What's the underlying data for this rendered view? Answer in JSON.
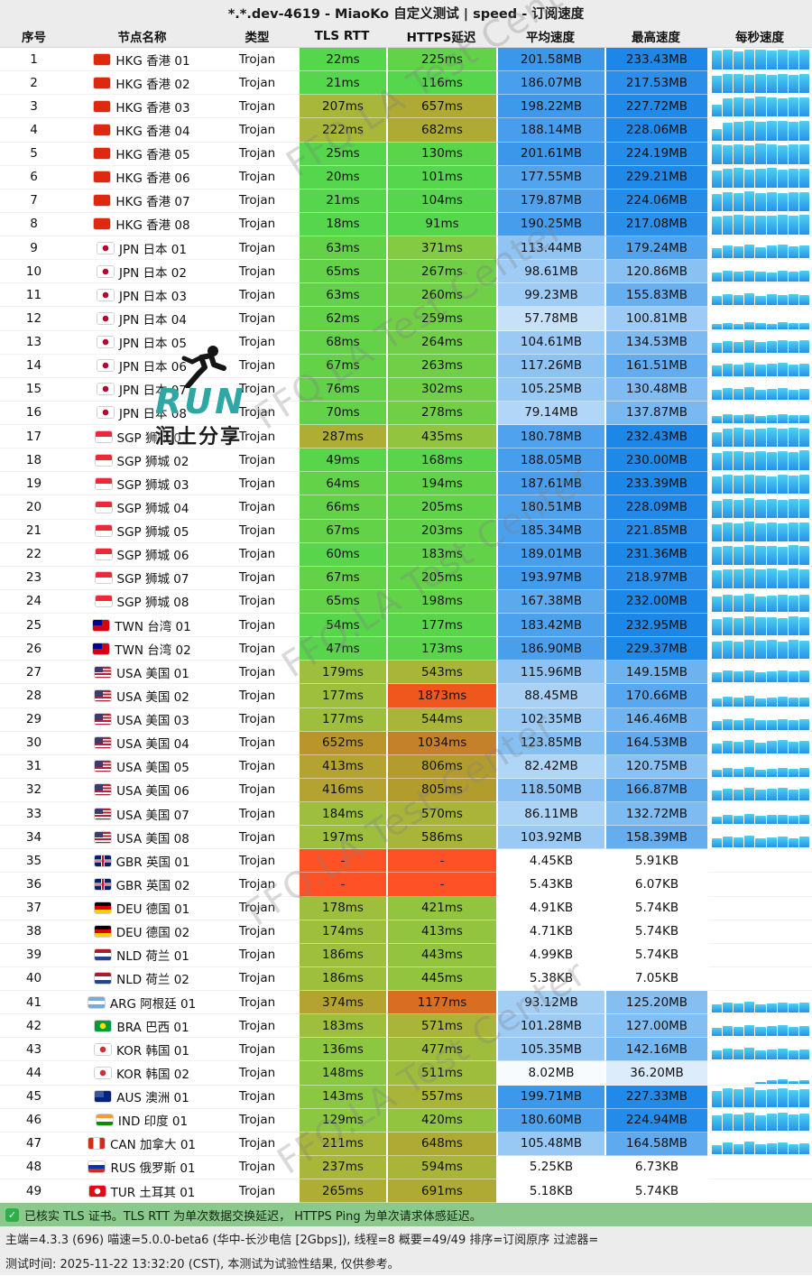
{
  "title": "*.*.dev-4619 - MiaoKo 自定义测试 | speed - 订阅速度",
  "columns": [
    "序号",
    "节点名称",
    "类型",
    "TLS RTT",
    "HTTPS延迟",
    "平均速度",
    "最高速度",
    "每秒速度"
  ],
  "rows": [
    {
      "no": 1,
      "flag": "HK",
      "name": "HKG 香港 01",
      "type": "Trojan",
      "tls": 22,
      "https": 225,
      "avg": "201.58MB",
      "max": "233.43MB",
      "bars": [
        92,
        96,
        88,
        94,
        97,
        90,
        95,
        93,
        96
      ]
    },
    {
      "no": 2,
      "flag": "HK",
      "name": "HKG 香港 02",
      "type": "Trojan",
      "tls": 21,
      "https": 116,
      "avg": "186.07MB",
      "max": "217.53MB",
      "bars": [
        85,
        90,
        94,
        88,
        92,
        86,
        91,
        89,
        93
      ]
    },
    {
      "no": 3,
      "flag": "HK",
      "name": "HKG 香港 03",
      "type": "Trojan",
      "tls": 207,
      "https": 657,
      "avg": "198.22MB",
      "max": "227.72MB",
      "bars": [
        58,
        88,
        93,
        90,
        95,
        92,
        89,
        94,
        91
      ]
    },
    {
      "no": 4,
      "flag": "HK",
      "name": "HKG 香港 04",
      "type": "Trojan",
      "tls": 222,
      "https": 682,
      "avg": "188.14MB",
      "max": "228.06MB",
      "bars": [
        52,
        85,
        90,
        94,
        88,
        92,
        95,
        90,
        93
      ]
    },
    {
      "no": 5,
      "flag": "HK",
      "name": "HKG 香港 05",
      "type": "Trojan",
      "tls": 25,
      "https": 130,
      "avg": "201.61MB",
      "max": "224.19MB",
      "bars": [
        93,
        89,
        95,
        91,
        96,
        94,
        90,
        92,
        95
      ]
    },
    {
      "no": 6,
      "flag": "HK",
      "name": "HKG 香港 06",
      "type": "Trojan",
      "tls": 20,
      "https": 101,
      "avg": "177.55MB",
      "max": "229.21MB",
      "bars": [
        80,
        88,
        92,
        85,
        90,
        94,
        87,
        91,
        89
      ]
    },
    {
      "no": 7,
      "flag": "HK",
      "name": "HKG 香港 07",
      "type": "Trojan",
      "tls": 21,
      "https": 104,
      "avg": "179.87MB",
      "max": "224.06MB",
      "bars": [
        82,
        90,
        86,
        93,
        88,
        91,
        85,
        92,
        90
      ]
    },
    {
      "no": 8,
      "flag": "HK",
      "name": "HKG 香港 08",
      "type": "Trojan",
      "tls": 18,
      "https": 91,
      "avg": "190.25MB",
      "max": "217.08MB",
      "bars": [
        88,
        92,
        95,
        90,
        93,
        89,
        94,
        91,
        95
      ]
    },
    {
      "no": 9,
      "flag": "JP",
      "name": "JPN 日本 01",
      "type": "Trojan",
      "tls": 63,
      "https": 371,
      "avg": "113.44MB",
      "max": "179.24MB",
      "bars": [
        50,
        62,
        58,
        66,
        54,
        60,
        64,
        57,
        61
      ]
    },
    {
      "no": 10,
      "flag": "JP",
      "name": "JPN 日本 02",
      "type": "Trojan",
      "tls": 65,
      "https": 267,
      "avg": "98.61MB",
      "max": "120.86MB",
      "bars": [
        45,
        52,
        48,
        55,
        50,
        46,
        53,
        49,
        51
      ]
    },
    {
      "no": 11,
      "flag": "JP",
      "name": "JPN 日本 03",
      "type": "Trojan",
      "tls": 63,
      "https": 260,
      "avg": "99.23MB",
      "max": "155.83MB",
      "bars": [
        44,
        53,
        49,
        56,
        47,
        52,
        50,
        54,
        48
      ]
    },
    {
      "no": 12,
      "flag": "JP",
      "name": "JPN 日本 04",
      "type": "Trojan",
      "tls": 62,
      "https": 259,
      "avg": "57.78MB",
      "max": "100.81MB",
      "bars": [
        22,
        30,
        26,
        33,
        28,
        24,
        31,
        27,
        29
      ]
    },
    {
      "no": 13,
      "flag": "JP",
      "name": "JPN 日本 05",
      "type": "Trojan",
      "tls": 68,
      "https": 264,
      "avg": "104.61MB",
      "max": "134.53MB",
      "bars": [
        48,
        56,
        52,
        60,
        50,
        55,
        58,
        53,
        57
      ]
    },
    {
      "no": 14,
      "flag": "JP",
      "name": "JPN 日本 06",
      "type": "Trojan",
      "tls": 67,
      "https": 263,
      "avg": "117.26MB",
      "max": "161.51MB",
      "bars": [
        52,
        60,
        56,
        64,
        54,
        58,
        62,
        55,
        60
      ]
    },
    {
      "no": 15,
      "flag": "JP",
      "name": "JPN 日本 07",
      "type": "Trojan",
      "tls": 76,
      "https": 302,
      "avg": "105.25MB",
      "max": "130.48MB",
      "bars": [
        46,
        54,
        50,
        58,
        48,
        52,
        56,
        49,
        53
      ]
    },
    {
      "no": 16,
      "flag": "JP",
      "name": "JPN 日本 08",
      "type": "Trojan",
      "tls": 70,
      "https": 278,
      "avg": "79.14MB",
      "max": "137.87MB",
      "bars": [
        34,
        42,
        38,
        45,
        36,
        40,
        44,
        37,
        41
      ]
    },
    {
      "no": 17,
      "flag": "SG",
      "name": "SGP 狮城 01",
      "type": "Trojan",
      "tls": 287,
      "https": 435,
      "avg": "180.78MB",
      "max": "232.43MB",
      "bars": [
        68,
        85,
        90,
        82,
        88,
        92,
        86,
        91,
        89
      ]
    },
    {
      "no": 18,
      "flag": "SG",
      "name": "SGP 狮城 02",
      "type": "Trojan",
      "tls": 49,
      "https": 168,
      "avg": "188.05MB",
      "max": "230.00MB",
      "bars": [
        84,
        90,
        94,
        88,
        92,
        86,
        93,
        89,
        95
      ]
    },
    {
      "no": 19,
      "flag": "SG",
      "name": "SGP 狮城 03",
      "type": "Trojan",
      "tls": 64,
      "https": 194,
      "avg": "187.61MB",
      "max": "233.39MB",
      "bars": [
        85,
        91,
        88,
        94,
        90,
        86,
        92,
        89,
        93
      ]
    },
    {
      "no": 20,
      "flag": "SG",
      "name": "SGP 狮城 04",
      "type": "Trojan",
      "tls": 66,
      "https": 205,
      "avg": "180.51MB",
      "max": "228.09MB",
      "bars": [
        80,
        88,
        84,
        91,
        86,
        89,
        83,
        90,
        87
      ]
    },
    {
      "no": 21,
      "flag": "SG",
      "name": "SGP 狮城 05",
      "type": "Trojan",
      "tls": 67,
      "https": 203,
      "avg": "185.34MB",
      "max": "221.85MB",
      "bars": [
        82,
        89,
        85,
        92,
        87,
        90,
        84,
        91,
        88
      ]
    },
    {
      "no": 22,
      "flag": "SG",
      "name": "SGP 狮城 06",
      "type": "Trojan",
      "tls": 60,
      "https": 183,
      "avg": "189.01MB",
      "max": "231.36MB",
      "bars": [
        84,
        90,
        87,
        93,
        88,
        91,
        85,
        92,
        90
      ]
    },
    {
      "no": 23,
      "flag": "SG",
      "name": "SGP 狮城 07",
      "type": "Trojan",
      "tls": 67,
      "https": 205,
      "avg": "193.97MB",
      "max": "218.97MB",
      "bars": [
        86,
        92,
        89,
        95,
        90,
        93,
        87,
        94,
        91
      ]
    },
    {
      "no": 24,
      "flag": "SG",
      "name": "SGP 狮城 08",
      "type": "Trojan",
      "tls": 65,
      "https": 198,
      "avg": "167.38MB",
      "max": "232.00MB",
      "bars": [
        72,
        82,
        78,
        86,
        74,
        80,
        84,
        76,
        83
      ]
    },
    {
      "no": 25,
      "flag": "TW",
      "name": "TWN 台湾 01",
      "type": "Trojan",
      "tls": 54,
      "https": 177,
      "avg": "183.42MB",
      "max": "232.95MB",
      "bars": [
        80,
        88,
        84,
        90,
        86,
        89,
        83,
        91,
        87
      ]
    },
    {
      "no": 26,
      "flag": "TW",
      "name": "TWN 台湾 02",
      "type": "Trojan",
      "tls": 47,
      "https": 173,
      "avg": "186.90MB",
      "max": "229.37MB",
      "bars": [
        82,
        89,
        85,
        92,
        87,
        90,
        84,
        91,
        88
      ]
    },
    {
      "no": 27,
      "flag": "US",
      "name": "USA 美国 01",
      "type": "Trojan",
      "tls": 179,
      "https": 543,
      "avg": "115.96MB",
      "max": "149.15MB",
      "bars": [
        48,
        56,
        52,
        60,
        50,
        55,
        58,
        53,
        57
      ]
    },
    {
      "no": 28,
      "flag": "US",
      "name": "USA 美国 02",
      "type": "Trojan",
      "tls": 177,
      "https": 1873,
      "avg": "88.45MB",
      "max": "170.66MB",
      "bars": [
        36,
        44,
        40,
        48,
        38,
        42,
        46,
        39,
        43
      ]
    },
    {
      "no": 29,
      "flag": "US",
      "name": "USA 美国 03",
      "type": "Trojan",
      "tls": 177,
      "https": 544,
      "avg": "102.35MB",
      "max": "146.46MB",
      "bars": [
        42,
        50,
        46,
        54,
        44,
        48,
        52,
        45,
        49
      ]
    },
    {
      "no": 30,
      "flag": "US",
      "name": "USA 美国 04",
      "type": "Trojan",
      "tls": 652,
      "https": 1034,
      "avg": "123.85MB",
      "max": "164.53MB",
      "bars": [
        48,
        60,
        55,
        64,
        52,
        58,
        62,
        54,
        59
      ]
    },
    {
      "no": 31,
      "flag": "US",
      "name": "USA 美国 05",
      "type": "Trojan",
      "tls": 413,
      "https": 806,
      "avg": "82.42MB",
      "max": "120.75MB",
      "bars": [
        34,
        42,
        38,
        45,
        36,
        40,
        44,
        37,
        41
      ]
    },
    {
      "no": 32,
      "flag": "US",
      "name": "USA 美国 06",
      "type": "Trojan",
      "tls": 416,
      "https": 805,
      "avg": "118.50MB",
      "max": "166.87MB",
      "bars": [
        48,
        58,
        53,
        62,
        50,
        56,
        60,
        52,
        57
      ]
    },
    {
      "no": 33,
      "flag": "US",
      "name": "USA 美国 07",
      "type": "Trojan",
      "tls": 184,
      "https": 570,
      "avg": "86.11MB",
      "max": "132.72MB",
      "bars": [
        36,
        44,
        40,
        47,
        38,
        42,
        45,
        39,
        43
      ]
    },
    {
      "no": 34,
      "flag": "US",
      "name": "USA 美国 08",
      "type": "Trojan",
      "tls": 197,
      "https": 586,
      "avg": "103.92MB",
      "max": "158.39MB",
      "bars": [
        43,
        52,
        47,
        56,
        45,
        50,
        54,
        46,
        51
      ]
    },
    {
      "no": 35,
      "flag": "GB",
      "name": "GBR 英国 01",
      "type": "Trojan",
      "tls": "-",
      "https": "-",
      "avg": "4.45KB",
      "max": "5.91KB",
      "bars": [
        0,
        0,
        0,
        0,
        0,
        0,
        0,
        0,
        0
      ]
    },
    {
      "no": 36,
      "flag": "GB",
      "name": "GBR 英国 02",
      "type": "Trojan",
      "tls": "-",
      "https": "-",
      "avg": "5.43KB",
      "max": "6.07KB",
      "bars": [
        0,
        0,
        0,
        0,
        0,
        0,
        0,
        0,
        0
      ]
    },
    {
      "no": 37,
      "flag": "DE",
      "name": "DEU 德国 01",
      "type": "Trojan",
      "tls": 178,
      "https": 421,
      "avg": "4.91KB",
      "max": "5.74KB",
      "bars": [
        0,
        0,
        0,
        0,
        0,
        0,
        0,
        0,
        0
      ]
    },
    {
      "no": 38,
      "flag": "DE",
      "name": "DEU 德国 02",
      "type": "Trojan",
      "tls": 174,
      "https": 413,
      "avg": "4.71KB",
      "max": "5.74KB",
      "bars": [
        0,
        0,
        0,
        0,
        0,
        0,
        0,
        0,
        0
      ]
    },
    {
      "no": 39,
      "flag": "NL",
      "name": "NLD 荷兰 01",
      "type": "Trojan",
      "tls": 186,
      "https": 443,
      "avg": "4.99KB",
      "max": "5.74KB",
      "bars": [
        0,
        0,
        0,
        0,
        0,
        0,
        0,
        0,
        0
      ]
    },
    {
      "no": 40,
      "flag": "NL",
      "name": "NLD 荷兰 02",
      "type": "Trojan",
      "tls": 186,
      "https": 445,
      "avg": "5.38KB",
      "max": "7.05KB",
      "bars": [
        0,
        0,
        0,
        0,
        0,
        0,
        0,
        0,
        0
      ]
    },
    {
      "no": 41,
      "flag": "AR",
      "name": "ARG 阿根廷 01",
      "type": "Trojan",
      "tls": 374,
      "https": 1177,
      "avg": "93.12MB",
      "max": "125.20MB",
      "bars": [
        38,
        48,
        43,
        52,
        40,
        46,
        50,
        42,
        47
      ]
    },
    {
      "no": 42,
      "flag": "BR",
      "name": "BRA 巴西 01",
      "type": "Trojan",
      "tls": 183,
      "https": 571,
      "avg": "101.28MB",
      "max": "127.00MB",
      "bars": [
        42,
        50,
        46,
        54,
        44,
        48,
        52,
        45,
        49
      ]
    },
    {
      "no": 43,
      "flag": "KR",
      "name": "KOR 韩国 01",
      "type": "Trojan",
      "tls": 136,
      "https": 477,
      "avg": "105.35MB",
      "max": "142.16MB",
      "bars": [
        44,
        52,
        48,
        56,
        46,
        50,
        54,
        47,
        51
      ]
    },
    {
      "no": 44,
      "flag": "KR",
      "name": "KOR 韩国 02",
      "type": "Trojan",
      "tls": 148,
      "https": 511,
      "avg": "8.02MB",
      "max": "36.20MB",
      "bars": [
        0,
        0,
        0,
        0,
        6,
        14,
        20,
        12,
        16
      ]
    },
    {
      "no": 45,
      "flag": "AU",
      "name": "AUS 澳洲 01",
      "type": "Trojan",
      "tls": 143,
      "https": 557,
      "avg": "199.71MB",
      "max": "227.33MB",
      "bars": [
        78,
        88,
        83,
        92,
        80,
        86,
        90,
        82,
        87
      ]
    },
    {
      "no": 46,
      "flag": "IN",
      "name": "IND 印度 01",
      "type": "Trojan",
      "tls": 129,
      "https": 420,
      "avg": "180.60MB",
      "max": "224.94MB",
      "bars": [
        72,
        82,
        77,
        86,
        74,
        80,
        84,
        76,
        81
      ]
    },
    {
      "no": 47,
      "flag": "CA",
      "name": "CAN 加拿大 01",
      "type": "Trojan",
      "tls": 211,
      "https": 648,
      "avg": "105.48MB",
      "max": "164.58MB",
      "bars": [
        44,
        54,
        49,
        58,
        46,
        52,
        56,
        48,
        53
      ]
    },
    {
      "no": 48,
      "flag": "RU",
      "name": "RUS 俄罗斯 01",
      "type": "Trojan",
      "tls": 237,
      "https": 594,
      "avg": "5.25KB",
      "max": "6.73KB",
      "bars": [
        0,
        0,
        0,
        0,
        0,
        0,
        0,
        0,
        0
      ]
    },
    {
      "no": 49,
      "flag": "TR",
      "name": "TUR 土耳其 01",
      "type": "Trojan",
      "tls": 265,
      "https": 691,
      "avg": "5.18KB",
      "max": "5.74KB",
      "bars": [
        0,
        0,
        0,
        0,
        0,
        0,
        0,
        0,
        0
      ]
    }
  ],
  "flags": {
    "HK": {
      "style": "solid",
      "colors": [
        "#de2910"
      ]
    },
    "JP": {
      "style": "dot",
      "colors": [
        "#ffffff",
        "#bc002d"
      ]
    },
    "SG": {
      "style": "h",
      "colors": [
        "#ed2939",
        "#ffffff"
      ]
    },
    "TW": {
      "style": "canton",
      "colors": [
        "#d7000f",
        "#000095"
      ]
    },
    "US": {
      "style": "us",
      "colors": [
        "#b22234",
        "#ffffff",
        "#3c3b6e"
      ]
    },
    "GB": {
      "style": "uk",
      "colors": [
        "#012169",
        "#ffffff",
        "#c8102e"
      ]
    },
    "DE": {
      "style": "h",
      "colors": [
        "#000000",
        "#dd0000",
        "#ffce00"
      ]
    },
    "NL": {
      "style": "h",
      "colors": [
        "#ae1c28",
        "#ffffff",
        "#21468b"
      ]
    },
    "AR": {
      "style": "h",
      "colors": [
        "#74acdf",
        "#ffffff",
        "#74acdf"
      ]
    },
    "BR": {
      "style": "dot",
      "colors": [
        "#009c3b",
        "#ffdf00"
      ]
    },
    "KR": {
      "style": "dot",
      "colors": [
        "#ffffff",
        "#cd2e3a"
      ]
    },
    "AU": {
      "style": "canton",
      "colors": [
        "#00247d",
        "#3b55a5"
      ]
    },
    "IN": {
      "style": "h",
      "colors": [
        "#ff9933",
        "#ffffff",
        "#138808"
      ]
    },
    "CA": {
      "style": "v",
      "colors": [
        "#d52b1e",
        "#ffffff",
        "#d52b1e"
      ]
    },
    "RU": {
      "style": "h",
      "colors": [
        "#ffffff",
        "#0039a6",
        "#d52b1e"
      ]
    },
    "TR": {
      "style": "dot",
      "colors": [
        "#e30a17",
        "#ffffff"
      ]
    }
  },
  "footer": {
    "tls_note": "已核实 TLS 证书。TLS RTT 为单次数据交换延迟， HTTPS Ping 为单次请求体感延迟。",
    "meta": "主端=4.3.3 (696) 喵速=5.0.0-beta6 (华中-长沙电信 [2Gbps]), 线程=8 概要=49/49 排序=订阅原序 过滤器=",
    "time": "测试时间: 2025-11-22 13:32:20 (CST), 本测试为试验性结果, 仅供参考。"
  },
  "watermark": {
    "text": "FFQ.LA Test Center",
    "run": "RUN",
    "share": "润土分享"
  },
  "palette": {
    "fast_green": "#55d64c",
    "timeout_red": "#ff5126",
    "speed_blue": "#1a86e7",
    "bar_top": "#4fd0f0",
    "bar_bottom": "#2791e8",
    "footer_green": "#8bc88b"
  }
}
